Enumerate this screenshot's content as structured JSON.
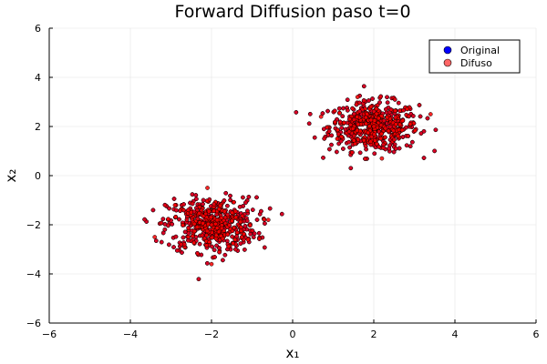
{
  "chart_data": {
    "type": "scatter",
    "title": "Forward Diffusion paso t=0",
    "xlabel": "x₁",
    "ylabel": "x₂",
    "xlim": [
      -6,
      6
    ],
    "ylim": [
      -6,
      6
    ],
    "xticks": [
      -6,
      -4,
      -2,
      0,
      2,
      4,
      6
    ],
    "yticks": [
      -6,
      -4,
      -2,
      0,
      2,
      4,
      6
    ],
    "xtick_labels": [
      "−6",
      "−4",
      "−2",
      "0",
      "2",
      "4",
      "6"
    ],
    "ytick_labels": [
      "−6",
      "−4",
      "−2",
      "0",
      "2",
      "4",
      "6"
    ],
    "grid": true,
    "legend_position": "top-right",
    "series": [
      {
        "name": "Original",
        "color": "#0000ff",
        "points": [
          [
            2.0,
            2.0
          ],
          [
            -2.0,
            -2.0
          ],
          [
            1.4,
            2.3
          ],
          [
            2.6,
            1.6
          ],
          [
            -2.5,
            -1.5
          ],
          [
            -1.6,
            -2.4
          ],
          [
            1.8,
            1.2
          ],
          [
            2.3,
            2.7
          ],
          [
            -2.2,
            -1.0
          ],
          [
            -1.4,
            -1.7
          ]
        ]
      },
      {
        "name": "Difuso",
        "color": "#ff0000",
        "points": [
          [
            2.0,
            2.0
          ],
          [
            -2.0,
            -2.0
          ],
          [
            1.4,
            2.3
          ],
          [
            2.6,
            1.6
          ],
          [
            -2.5,
            -1.5
          ],
          [
            -1.6,
            -2.4
          ],
          [
            1.8,
            1.2
          ],
          [
            2.3,
            2.7
          ],
          [
            -2.2,
            -1.0
          ],
          [
            -1.4,
            -1.7
          ],
          [
            0.7,
            2.4
          ],
          [
            3.4,
            2.5
          ],
          [
            1.6,
            3.2
          ],
          [
            2.2,
            0.7
          ],
          [
            -3.4,
            -2.5
          ],
          [
            -0.6,
            -1.8
          ],
          [
            -2.0,
            -3.6
          ],
          [
            -2.1,
            -0.5
          ],
          [
            1.1,
            1.5
          ],
          [
            2.9,
            2.1
          ],
          [
            -2.9,
            -1.2
          ],
          [
            -1.1,
            -2.6
          ]
        ]
      }
    ],
    "clusters": [
      {
        "center": [
          2.0,
          2.0
        ],
        "sd": [
          0.55,
          0.5
        ],
        "count": 500
      },
      {
        "center": [
          -2.0,
          -2.0
        ],
        "sd": [
          0.55,
          0.55
        ],
        "count": 500
      }
    ]
  }
}
